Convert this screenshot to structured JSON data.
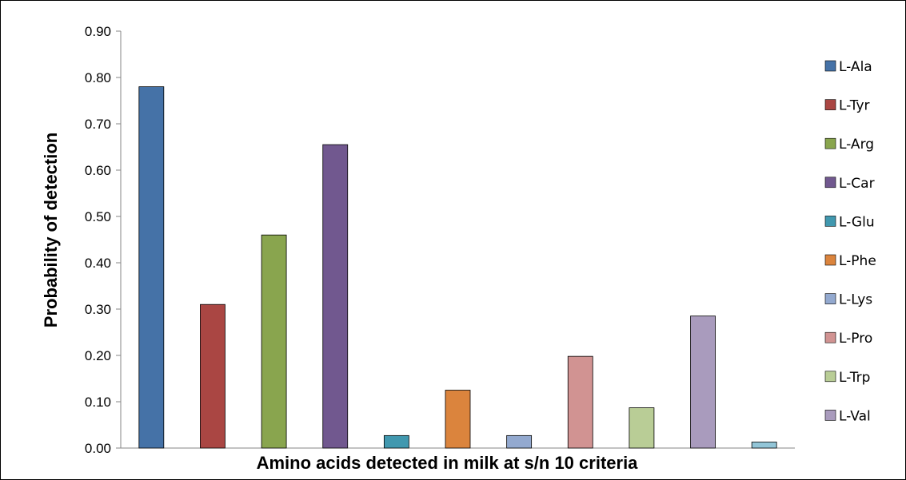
{
  "chart_data": {
    "type": "bar",
    "title": "",
    "xlabel": "Amino acids detected in milk at s/n 10 criteria",
    "ylabel": "Probability of detection",
    "ylim": [
      0,
      0.9
    ],
    "y_ticks": [
      "0.00",
      "0.10",
      "0.20",
      "0.30",
      "0.40",
      "0.50",
      "0.60",
      "0.70",
      "0.80",
      "0.90"
    ],
    "grid": false,
    "legend_position": "right",
    "series": [
      {
        "name": "L-Ala",
        "value": 0.78,
        "color": "#4572A7"
      },
      {
        "name": "L-Tyr",
        "value": 0.31,
        "color": "#AA4643"
      },
      {
        "name": "L-Arg",
        "value": 0.46,
        "color": "#89A54E"
      },
      {
        "name": "L-Car",
        "value": 0.655,
        "color": "#71588F"
      },
      {
        "name": "L-Glu",
        "value": 0.027,
        "color": "#4198AF"
      },
      {
        "name": "L-Phe",
        "value": 0.125,
        "color": "#DB843D"
      },
      {
        "name": "L-Lys",
        "value": 0.027,
        "color": "#93A9CF"
      },
      {
        "name": "L-Pro",
        "value": 0.198,
        "color": "#D19392"
      },
      {
        "name": "L-Trp",
        "value": 0.087,
        "color": "#B9CD96"
      },
      {
        "name": "L-Val",
        "value": 0.285,
        "color": "#A99BBD"
      },
      {
        "value": 0.013,
        "color": "#92C5D7"
      }
    ]
  }
}
